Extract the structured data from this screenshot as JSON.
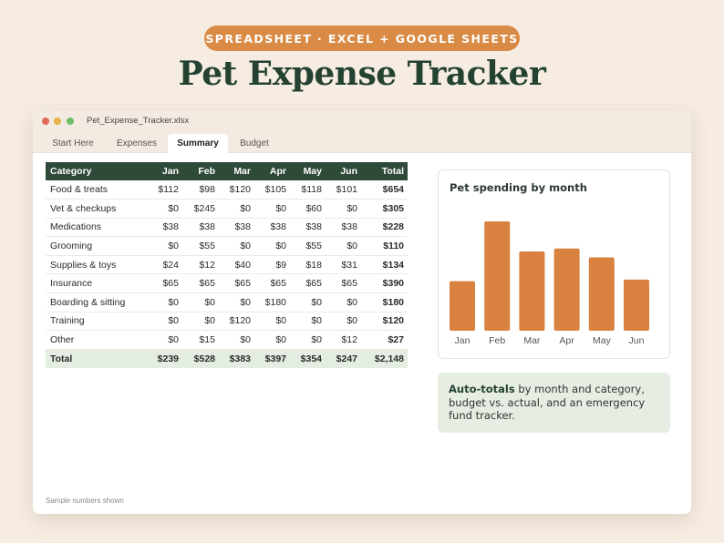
{
  "banner": {
    "tag": "SPREADSHEET · EXCEL + GOOGLE SHEETS",
    "headline": "Pet Expense Tracker"
  },
  "window": {
    "filename": "Pet_Expense_Tracker.xlsx",
    "tabs": [
      {
        "label": "Start Here",
        "active": false
      },
      {
        "label": "Expenses",
        "active": false
      },
      {
        "label": "Summary",
        "active": true
      },
      {
        "label": "Budget",
        "active": false
      }
    ]
  },
  "table": {
    "headers": [
      "Category",
      "Jan",
      "Feb",
      "Mar",
      "Apr",
      "May",
      "Jun",
      "Total"
    ],
    "rows": [
      [
        "Food & treats",
        "$112",
        "$98",
        "$120",
        "$105",
        "$118",
        "$101",
        "$654"
      ],
      [
        "Vet & checkups",
        "$0",
        "$245",
        "$0",
        "$0",
        "$60",
        "$0",
        "$305"
      ],
      [
        "Medications",
        "$38",
        "$38",
        "$38",
        "$38",
        "$38",
        "$38",
        "$228"
      ],
      [
        "Grooming",
        "$0",
        "$55",
        "$0",
        "$0",
        "$55",
        "$0",
        "$110"
      ],
      [
        "Supplies & toys",
        "$24",
        "$12",
        "$40",
        "$9",
        "$18",
        "$31",
        "$134"
      ],
      [
        "Insurance",
        "$65",
        "$65",
        "$65",
        "$65",
        "$65",
        "$65",
        "$390"
      ],
      [
        "Boarding & sitting",
        "$0",
        "$0",
        "$0",
        "$180",
        "$0",
        "$0",
        "$180"
      ],
      [
        "Training",
        "$0",
        "$0",
        "$120",
        "$0",
        "$0",
        "$0",
        "$120"
      ],
      [
        "Other",
        "$0",
        "$15",
        "$0",
        "$0",
        "$0",
        "$12",
        "$27"
      ]
    ],
    "total_row": [
      "Total",
      "$239",
      "$528",
      "$383",
      "$397",
      "$354",
      "$247",
      "$2,148"
    ]
  },
  "footnote": "Sample numbers shown",
  "chart_data": {
    "type": "bar",
    "title": "Pet spending by month",
    "categories": [
      "Jan",
      "Feb",
      "Mar",
      "Apr",
      "May",
      "Jun"
    ],
    "values": [
      239,
      528,
      383,
      397,
      354,
      247
    ],
    "ylim": [
      0,
      528
    ],
    "grid": false,
    "color": "#d9813f"
  },
  "info": {
    "bold": "Auto-totals",
    "text": " by month and category, budget vs. actual, and an emergency fund tracker."
  },
  "colors": {
    "accent": "#d98a44",
    "header_green": "#2f4a38",
    "title_green": "#244232",
    "total_row_bg": "#e4ede1",
    "background": "#f6ece1"
  }
}
